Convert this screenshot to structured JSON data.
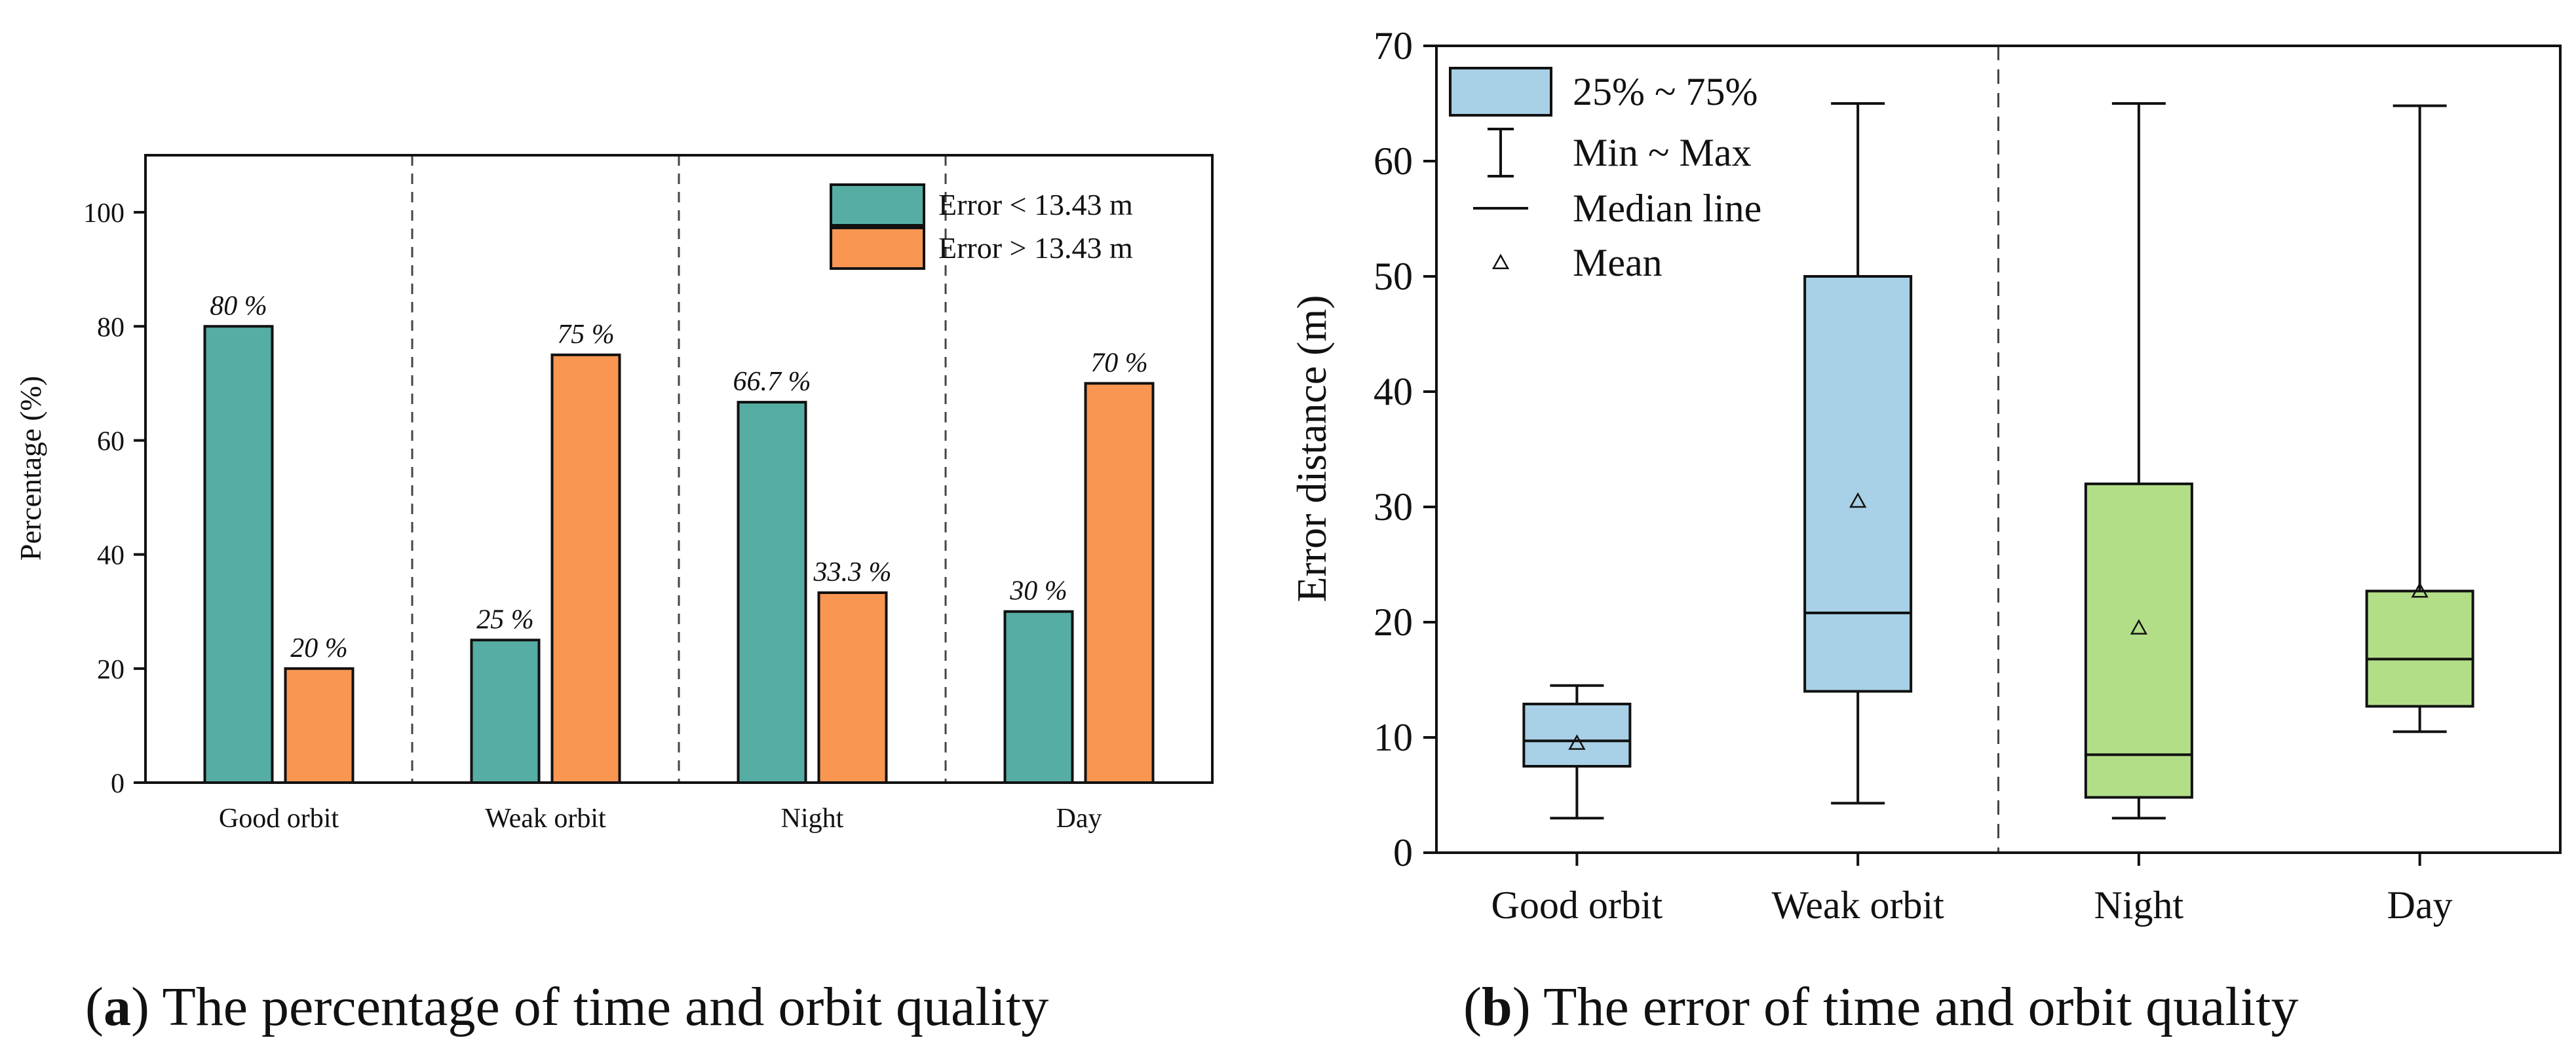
{
  "chart_data": [
    {
      "panel": "a",
      "type": "bar",
      "caption": {
        "letter": "a",
        "text": "The percentage of time and orbit quality"
      },
      "ylabel": "Percentage (%)",
      "xlabel": "",
      "ylim": [
        0,
        110
      ],
      "yticks": [
        0,
        20,
        40,
        60,
        80,
        100
      ],
      "categories": [
        "Good orbit",
        "Weak orbit",
        "Night",
        "Day"
      ],
      "series": [
        {
          "name": "Error < 13.43 m",
          "color": "#56ada4",
          "values": [
            80,
            25,
            66.7,
            30
          ],
          "labels": [
            "80 %",
            "25 %",
            "66.7 %",
            "30 %"
          ]
        },
        {
          "name": "Error > 13.43 m",
          "color": "#f89652",
          "values": [
            20,
            75,
            33.3,
            70
          ],
          "labels": [
            "20 %",
            "75 %",
            "33.3 %",
            "70 %"
          ]
        }
      ],
      "legend_position": "top-right",
      "separators": "dashed"
    },
    {
      "panel": "b",
      "type": "box",
      "caption": {
        "letter": "b",
        "text": "The error of time and orbit quality"
      },
      "ylabel": "Error distance (m)",
      "xlabel": "",
      "ylim": [
        0,
        70
      ],
      "yticks": [
        0,
        10,
        20,
        30,
        40,
        50,
        60,
        70
      ],
      "categories": [
        "Good orbit",
        "Weak orbit",
        "Night",
        "Day"
      ],
      "boxes": [
        {
          "category": "Good orbit",
          "min": 3.0,
          "q1": 7.5,
          "median": 9.7,
          "q3": 12.9,
          "max": 14.5,
          "mean": 9.5,
          "color": "#a8d0e6"
        },
        {
          "category": "Weak orbit",
          "min": 4.3,
          "q1": 14.0,
          "median": 20.8,
          "q3": 50.0,
          "max": 65.0,
          "mean": 30.5,
          "color": "#a8d0e6"
        },
        {
          "category": "Night",
          "min": 3.0,
          "q1": 4.8,
          "median": 8.5,
          "q3": 32.0,
          "max": 65.0,
          "mean": 19.5,
          "color": "#b3de88"
        },
        {
          "category": "Day",
          "min": 10.5,
          "q1": 12.7,
          "median": 16.8,
          "q3": 22.7,
          "max": 64.8,
          "mean": 22.7,
          "color": "#b3de88"
        }
      ],
      "legend": [
        {
          "name": "25% ~ 75%",
          "symbol": "box"
        },
        {
          "name": "Min ~ Max",
          "symbol": "whisker"
        },
        {
          "name": "Median line",
          "symbol": "line"
        },
        {
          "name": "Mean",
          "symbol": "triangle"
        }
      ],
      "legend_position": "top-left",
      "separator_after_category": 1,
      "separators": "dashed"
    }
  ]
}
